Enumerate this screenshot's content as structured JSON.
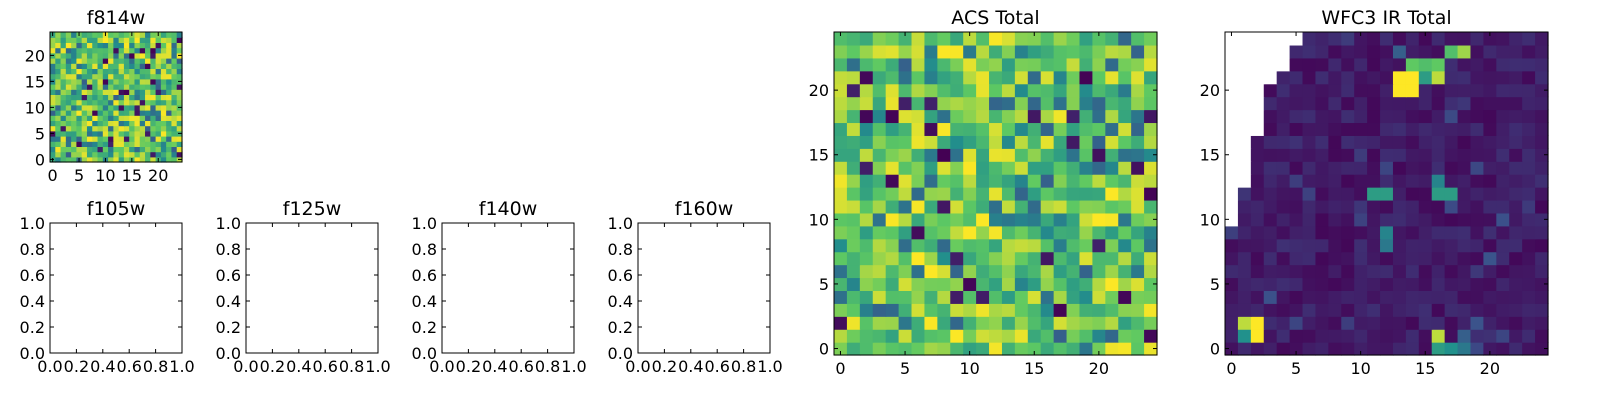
{
  "figure": {
    "background": "#ffffff",
    "colormap": [
      "#440154",
      "#3b528b",
      "#21918c",
      "#5ec962",
      "#fde725"
    ]
  },
  "chart_data": [
    {
      "id": "f814w",
      "type": "heatmap",
      "title": "f814w",
      "grid": [
        25,
        25
      ],
      "nodata_color": "#ffffff",
      "xlim": [
        -0.5,
        24.5
      ],
      "ylim": [
        -0.5,
        24.5
      ],
      "xticks": [
        0,
        5,
        10,
        15,
        20
      ],
      "yticks": [
        0,
        5,
        10,
        15,
        20
      ],
      "xticklabels": [
        "0",
        "5",
        "10",
        "15",
        "20"
      ],
      "yticklabels": [
        "0",
        "5",
        "10",
        "15",
        "20"
      ],
      "pattern": "noise",
      "seed": 814
    },
    {
      "id": "f105w",
      "type": "empty",
      "title": "f105w",
      "xlim": [
        0,
        1
      ],
      "ylim": [
        0,
        1
      ],
      "xticks": [
        0,
        0.2,
        0.4,
        0.6,
        0.8,
        1
      ],
      "yticks": [
        0,
        0.2,
        0.4,
        0.6,
        0.8,
        1
      ],
      "xticklabels": [
        "0.0",
        "0.2",
        "0.4",
        "0.6",
        "0.8",
        "1.0"
      ],
      "yticklabels": [
        "0.0",
        "0.2",
        "0.4",
        "0.6",
        "0.8",
        "1.0"
      ]
    },
    {
      "id": "f125w",
      "type": "empty",
      "title": "f125w",
      "xlim": [
        0,
        1
      ],
      "ylim": [
        0,
        1
      ],
      "xticks": [
        0,
        0.2,
        0.4,
        0.6,
        0.8,
        1
      ],
      "yticks": [
        0,
        0.2,
        0.4,
        0.6,
        0.8,
        1
      ],
      "xticklabels": [
        "0.0",
        "0.2",
        "0.4",
        "0.6",
        "0.8",
        "1.0"
      ],
      "yticklabels": [
        "0.0",
        "0.2",
        "0.4",
        "0.6",
        "0.8",
        "1.0"
      ]
    },
    {
      "id": "f140w",
      "type": "empty",
      "title": "f140w",
      "xlim": [
        0,
        1
      ],
      "ylim": [
        0,
        1
      ],
      "xticks": [
        0,
        0.2,
        0.4,
        0.6,
        0.8,
        1
      ],
      "yticks": [
        0,
        0.2,
        0.4,
        0.6,
        0.8,
        1
      ],
      "xticklabels": [
        "0.0",
        "0.2",
        "0.4",
        "0.6",
        "0.8",
        "1.0"
      ],
      "yticklabels": [
        "0.0",
        "0.2",
        "0.4",
        "0.6",
        "0.8",
        "1.0"
      ]
    },
    {
      "id": "f160w",
      "type": "empty",
      "title": "f160w",
      "xlim": [
        0,
        1
      ],
      "ylim": [
        0,
        1
      ],
      "xticks": [
        0,
        0.2,
        0.4,
        0.6,
        0.8,
        1
      ],
      "yticks": [
        0,
        0.2,
        0.4,
        0.6,
        0.8,
        1
      ],
      "xticklabels": [
        "0.0",
        "0.2",
        "0.4",
        "0.6",
        "0.8",
        "1.0"
      ],
      "yticklabels": [
        "0.0",
        "0.2",
        "0.4",
        "0.6",
        "0.8",
        "1.0"
      ]
    },
    {
      "id": "acs-total",
      "type": "heatmap",
      "title": "ACS Total",
      "grid": [
        25,
        25
      ],
      "nodata_color": "#ffffff",
      "xlim": [
        -0.5,
        24.5
      ],
      "ylim": [
        -0.5,
        24.5
      ],
      "xticks": [
        0,
        5,
        10,
        15,
        20
      ],
      "yticks": [
        0,
        5,
        10,
        15,
        20
      ],
      "xticklabels": [
        "0",
        "5",
        "10",
        "15",
        "20"
      ],
      "yticklabels": [
        "0",
        "5",
        "10",
        "15",
        "20"
      ],
      "pattern": "noise",
      "seed": 1337
    },
    {
      "id": "wfc3-ir-total",
      "type": "heatmap",
      "title": "WFC3 IR Total",
      "grid": [
        25,
        25
      ],
      "nodata_color": "#ffffff",
      "xlim": [
        -0.5,
        24.5
      ],
      "ylim": [
        -0.5,
        24.5
      ],
      "xticks": [
        0,
        5,
        10,
        15,
        20
      ],
      "yticks": [
        0,
        5,
        10,
        15,
        20
      ],
      "xticklabels": [
        "0",
        "5",
        "10",
        "15",
        "20"
      ],
      "yticklabels": [
        "0",
        "5",
        "10",
        "15",
        "20"
      ],
      "pattern": "sparse",
      "seed": 3,
      "nodata_rows": [
        {
          "row": 24,
          "cols": [
            0,
            5
          ]
        },
        {
          "row": 23,
          "cols": [
            0,
            4
          ]
        },
        {
          "row": 22,
          "cols": [
            0,
            4
          ]
        },
        {
          "row": 21,
          "cols": [
            0,
            3
          ]
        },
        {
          "row": 20,
          "cols": [
            0,
            2
          ]
        },
        {
          "row": 19,
          "cols": [
            0,
            2
          ]
        },
        {
          "row": 18,
          "cols": [
            0,
            2
          ]
        },
        {
          "row": 17,
          "cols": [
            0,
            2
          ]
        },
        {
          "row": 16,
          "cols": [
            0,
            1
          ]
        },
        {
          "row": 15,
          "cols": [
            0,
            1
          ]
        },
        {
          "row": 14,
          "cols": [
            0,
            1
          ]
        },
        {
          "row": 13,
          "cols": [
            0,
            1
          ]
        },
        {
          "row": 12,
          "cols": [
            0,
            0
          ]
        },
        {
          "row": 11,
          "cols": [
            0,
            0
          ]
        },
        {
          "row": 10,
          "cols": [
            0,
            0
          ]
        }
      ],
      "bright_pixels": [
        {
          "x": 13,
          "y": 21,
          "v": 1.0
        },
        {
          "x": 14,
          "y": 21,
          "v": 1.0
        },
        {
          "x": 13,
          "y": 20,
          "v": 1.0
        },
        {
          "x": 14,
          "y": 20,
          "v": 1.0
        },
        {
          "x": 14,
          "y": 22,
          "v": 0.75
        },
        {
          "x": 15,
          "y": 22,
          "v": 0.7
        },
        {
          "x": 16,
          "y": 22,
          "v": 0.75
        },
        {
          "x": 15,
          "y": 21,
          "v": 0.55
        },
        {
          "x": 16,
          "y": 21,
          "v": 0.9
        },
        {
          "x": 17,
          "y": 23,
          "v": 0.7
        },
        {
          "x": 18,
          "y": 23,
          "v": 0.85
        },
        {
          "x": 13,
          "y": 23,
          "v": 0.3
        },
        {
          "x": 11,
          "y": 12,
          "v": 0.55
        },
        {
          "x": 12,
          "y": 12,
          "v": 0.55
        },
        {
          "x": 16,
          "y": 12,
          "v": 0.55
        },
        {
          "x": 17,
          "y": 12,
          "v": 0.55
        },
        {
          "x": 16,
          "y": 13,
          "v": 0.45
        },
        {
          "x": 12,
          "y": 9,
          "v": 0.45
        },
        {
          "x": 12,
          "y": 8,
          "v": 0.4
        },
        {
          "x": 1,
          "y": 2,
          "v": 0.9
        },
        {
          "x": 2,
          "y": 2,
          "v": 1.0
        },
        {
          "x": 2,
          "y": 1,
          "v": 1.0
        },
        {
          "x": 1,
          "y": 1,
          "v": 0.5
        },
        {
          "x": 16,
          "y": 1,
          "v": 0.9
        },
        {
          "x": 16,
          "y": 0,
          "v": 0.55
        },
        {
          "x": 17,
          "y": 0,
          "v": 0.5
        },
        {
          "x": 18,
          "y": 0,
          "v": 0.4
        },
        {
          "x": 18,
          "y": 1,
          "v": 0.3
        }
      ]
    }
  ]
}
